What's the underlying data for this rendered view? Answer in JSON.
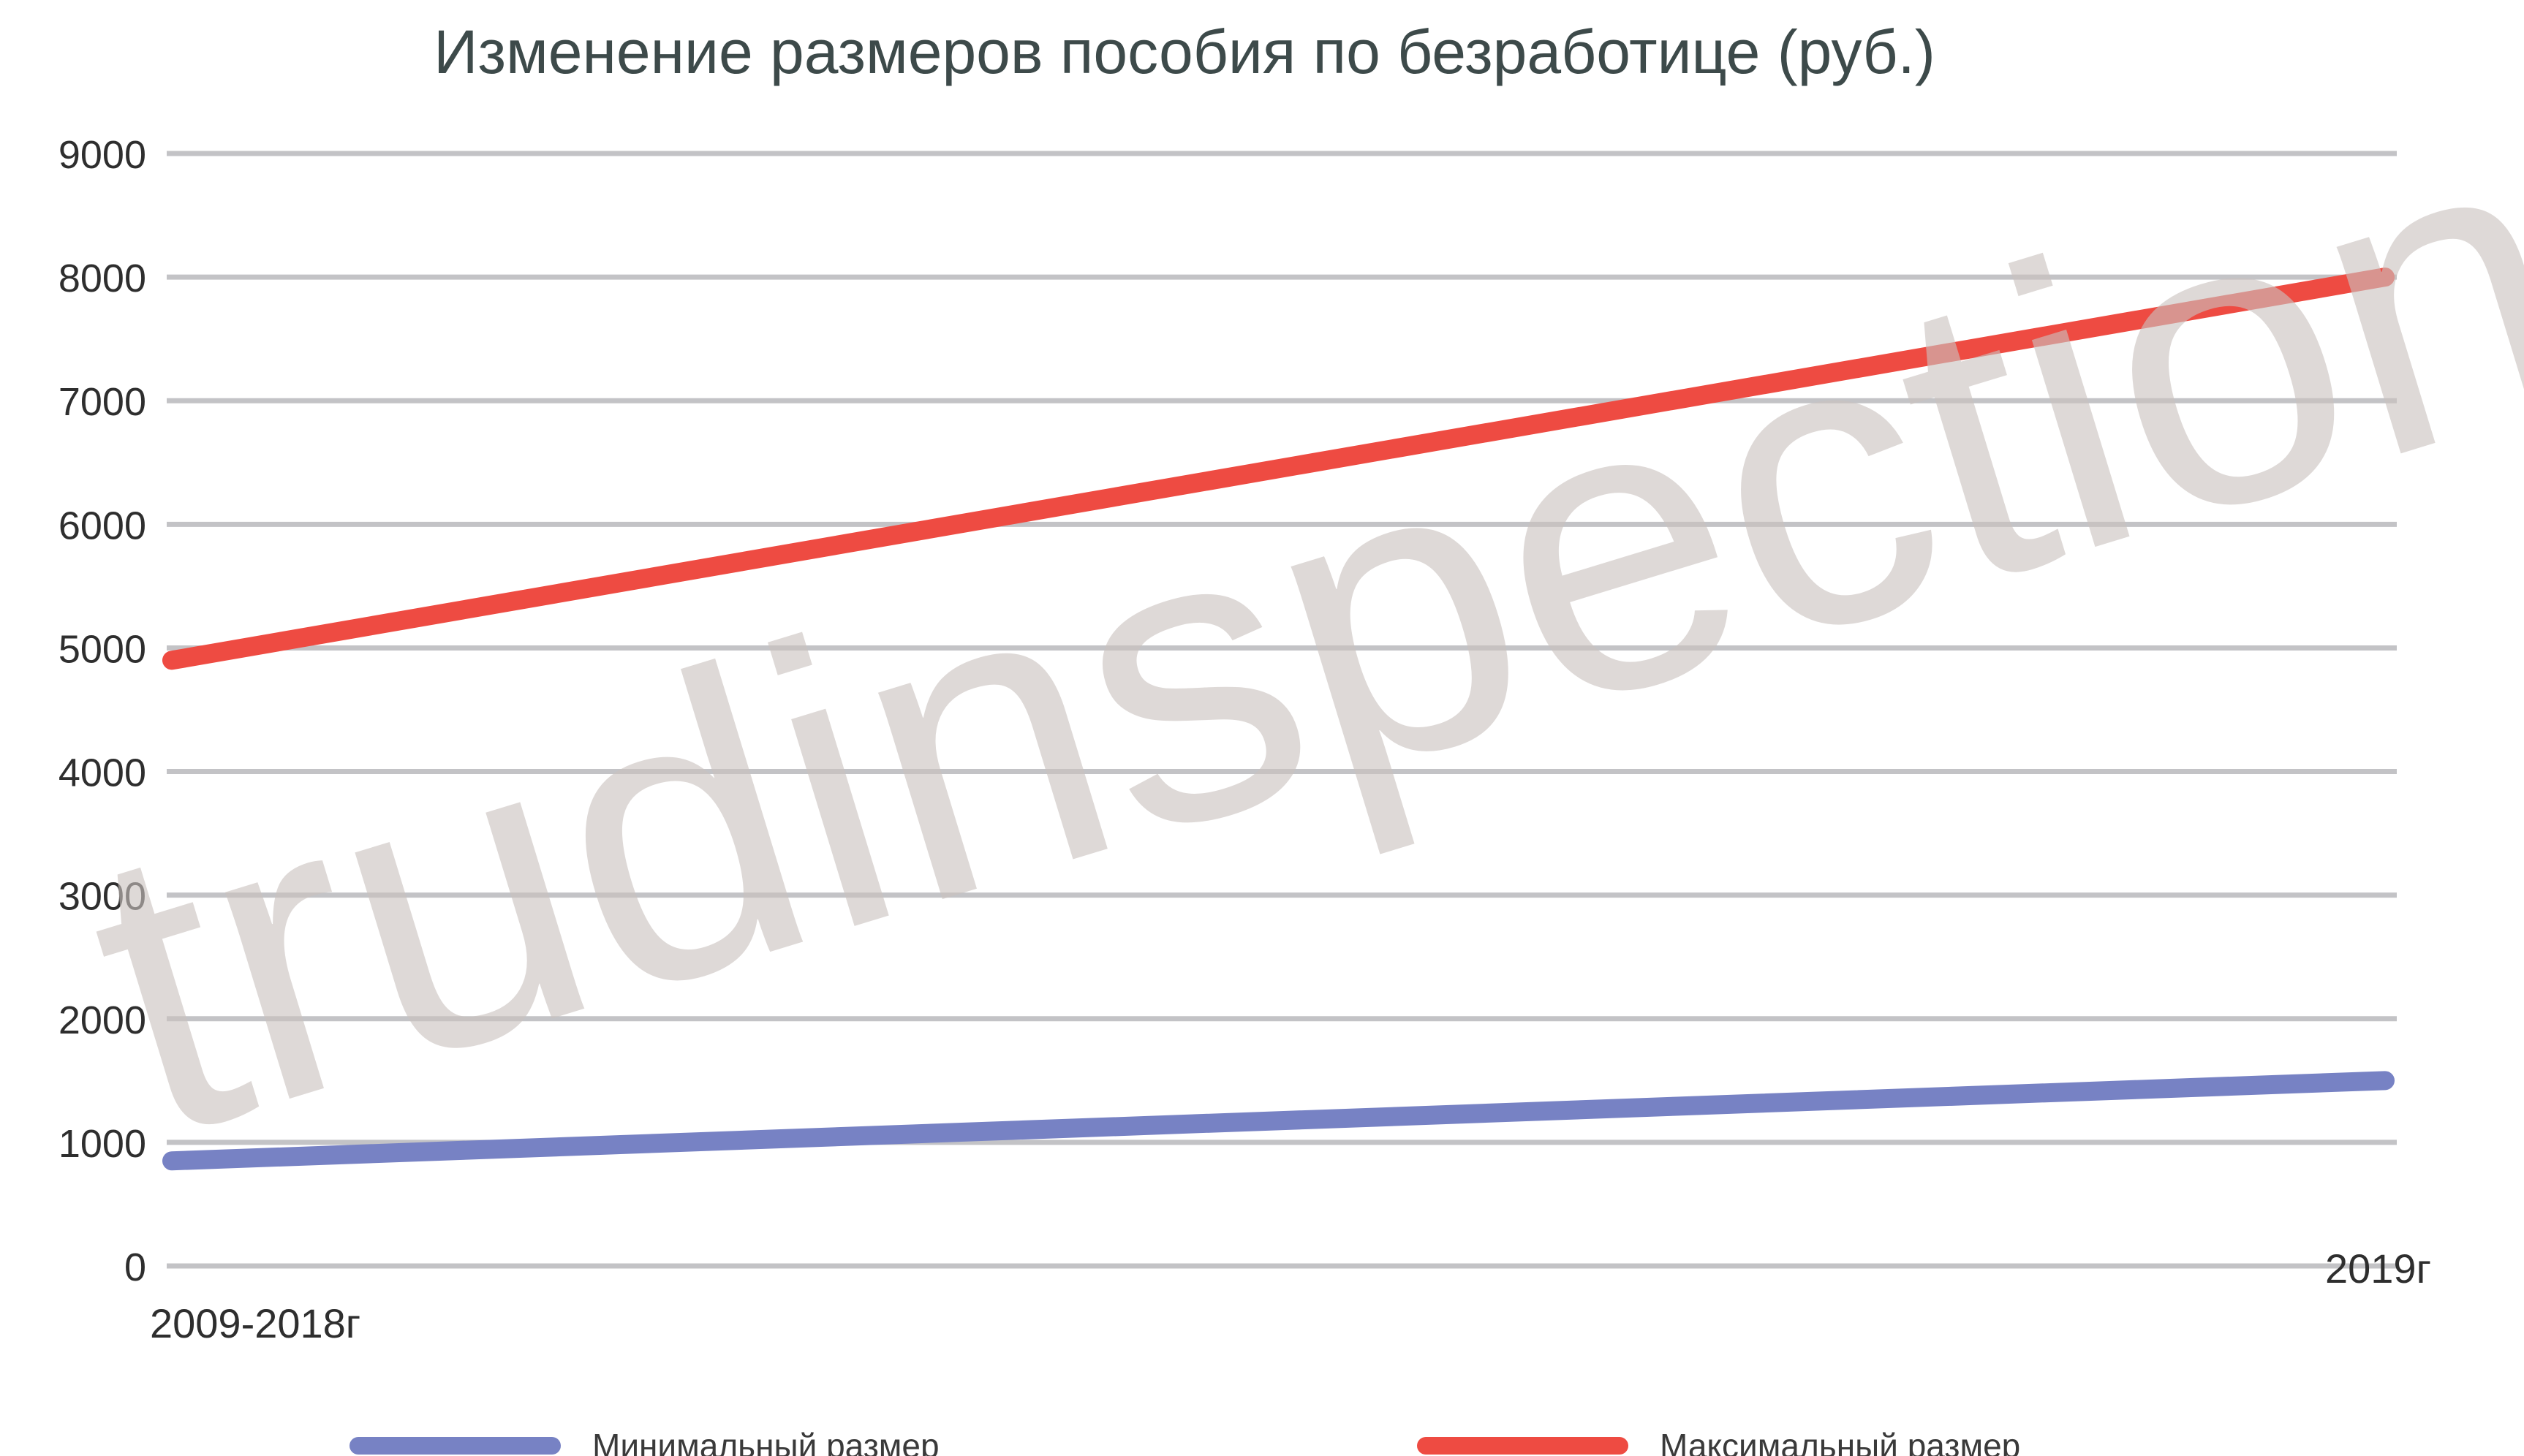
{
  "watermark": "trudinspection.ru",
  "chart_data": {
    "type": "line",
    "title": "Изменение размеров пособия по безработице (руб.)",
    "xlabel": "",
    "ylabel": "",
    "categories": [
      "2009-2018г",
      "2019г"
    ],
    "ylim": [
      0,
      9000
    ],
    "yticks": [
      0,
      1000,
      2000,
      3000,
      4000,
      5000,
      6000,
      7000,
      8000,
      9000
    ],
    "grid": true,
    "legend_position": "bottom",
    "series": [
      {
        "name": "Минимальный размер",
        "values": [
          850,
          1500
        ],
        "color": "#7782c4"
      },
      {
        "name": "Максимальный размер",
        "values": [
          4900,
          8000
        ],
        "color": "#ee4b42"
      }
    ]
  }
}
